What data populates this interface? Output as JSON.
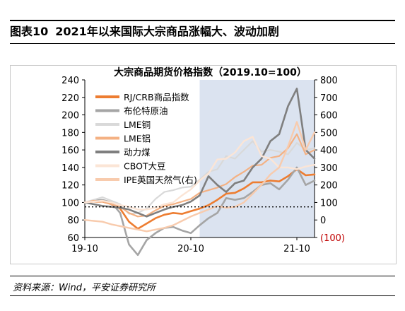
{
  "figure": {
    "label": "图表10",
    "caption": "2021年以来国际大宗商品涨幅大、波动加剧"
  },
  "source": "资料来源：Wind，平安证券研究所",
  "chart_data": {
    "type": "line",
    "title": "大宗商品期货价格指数（2019.10=100）",
    "x_ticks": [
      "19-10",
      "20-10",
      "21-10"
    ],
    "x": [
      "2019-10",
      "2019-11",
      "2019-12",
      "2020-01",
      "2020-02",
      "2020-03",
      "2020-04",
      "2020-05",
      "2020-06",
      "2020-07",
      "2020-08",
      "2020-09",
      "2020-10",
      "2020-11",
      "2020-12",
      "2021-01",
      "2021-02",
      "2021-03",
      "2021-04",
      "2021-05",
      "2021-06",
      "2021-07",
      "2021-08",
      "2021-09",
      "2021-10",
      "2021-11",
      "2021-12"
    ],
    "y_left": {
      "ticks": [
        60,
        80,
        100,
        120,
        140,
        160,
        180,
        200,
        220,
        240
      ],
      "range": [
        60,
        240
      ]
    },
    "y_right": {
      "ticks": [
        "(100)",
        "0",
        "100",
        "200",
        "300",
        "400",
        "500",
        "600",
        "700",
        "800"
      ],
      "values": [
        -100,
        0,
        100,
        200,
        300,
        400,
        500,
        600,
        700,
        800
      ],
      "range": [
        -100,
        800
      ]
    },
    "reference_line": {
      "axis": "left",
      "value": 95,
      "style": "dotted"
    },
    "shaded_region": {
      "from": "2020-11",
      "to": "2021-12",
      "color": "#dbe3f0"
    },
    "series": [
      {
        "name": "RJ/CRB商品指数",
        "color": "#ed7d31",
        "axis": "left",
        "width": 2.6,
        "values": [
          100,
          101,
          101,
          98,
          93,
          78,
          70,
          76,
          82,
          86,
          88,
          87,
          90,
          93,
          97,
          103,
          110,
          111,
          116,
          123,
          123,
          125,
          124,
          130,
          138,
          131,
          132
        ]
      },
      {
        "name": "布伦特原油",
        "color": "#a5a5a5",
        "axis": "left",
        "width": 2.6,
        "values": [
          100,
          102,
          103,
          100,
          88,
          52,
          40,
          57,
          65,
          71,
          72,
          68,
          65,
          74,
          82,
          88,
          105,
          103,
          105,
          112,
          120,
          122,
          115,
          126,
          140,
          120,
          125
        ]
      },
      {
        "name": "LME铜",
        "color": "#d9d9d9",
        "axis": "left",
        "width": 2.2,
        "values": [
          100,
          103,
          106,
          102,
          98,
          87,
          88,
          93,
          104,
          112,
          114,
          117,
          118,
          126,
          135,
          138,
          153,
          150,
          160,
          170,
          158,
          160,
          158,
          155,
          168,
          160,
          162
        ]
      },
      {
        "name": "LME铝",
        "color": "#f4b183",
        "axis": "left",
        "width": 2.2,
        "values": [
          100,
          102,
          101,
          98,
          95,
          88,
          84,
          85,
          91,
          96,
          98,
          101,
          104,
          111,
          114,
          117,
          121,
          129,
          135,
          142,
          143,
          151,
          153,
          162,
          178,
          155,
          160
        ]
      },
      {
        "name": "动力煤",
        "color": "#7f7f7f",
        "axis": "left",
        "width": 2.6,
        "values": [
          100,
          98,
          96,
          95,
          94,
          92,
          88,
          84,
          88,
          92,
          95,
          97,
          101,
          108,
          130,
          120,
          112,
          122,
          125,
          140,
          150,
          170,
          178,
          210,
          230,
          160,
          150
        ]
      },
      {
        "name": "CBOT大豆",
        "color": "#fbe5d6",
        "axis": "left",
        "width": 2.4,
        "values": [
          100,
          101,
          102,
          100,
          97,
          95,
          92,
          92,
          94,
          98,
          100,
          108,
          115,
          125,
          133,
          149,
          150,
          157,
          170,
          175,
          153,
          150,
          140,
          140,
          138,
          141,
          143
        ]
      },
      {
        "name": "IPE英国天然气(右)",
        "color": "#f8cbad",
        "axis": "right",
        "width": 2.4,
        "values": [
          0,
          -5,
          -10,
          -25,
          -35,
          -45,
          -55,
          -65,
          -55,
          -45,
          -30,
          -5,
          20,
          40,
          60,
          80,
          70,
          75,
          100,
          150,
          200,
          260,
          300,
          420,
          560,
          400,
          500
        ]
      }
    ]
  }
}
